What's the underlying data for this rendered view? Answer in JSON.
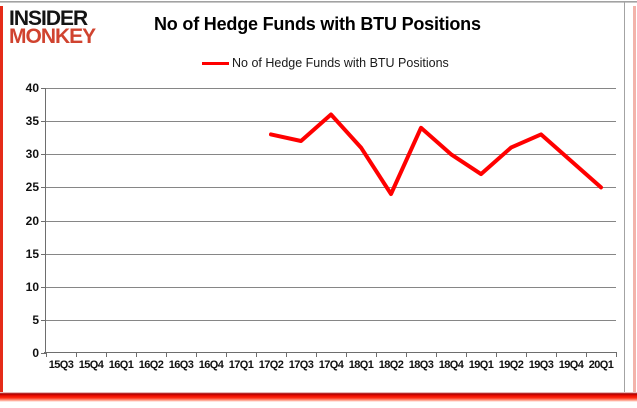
{
  "logo": {
    "line1": "INSIDER",
    "line2": "MONKEY"
  },
  "title": "No of Hedge Funds with BTU Positions",
  "legend": {
    "label": "No of Hedge Funds with BTU Positions"
  },
  "colors": {
    "line": "#ff0000",
    "grid": "#868686",
    "axis": "#6e6e6e",
    "logo_black": "#141414",
    "logo_red": "#d0432f",
    "border_red": "#e52b18",
    "border_pink": "#f3b3ab",
    "frame_gray": "#9e9e9e"
  },
  "chart_data": {
    "type": "line",
    "title": "No of Hedge Funds with BTU Positions",
    "categories": [
      "15Q3",
      "15Q4",
      "16Q1",
      "16Q2",
      "16Q3",
      "16Q4",
      "17Q1",
      "17Q2",
      "17Q3",
      "17Q4",
      "18Q1",
      "18Q2",
      "18Q3",
      "18Q4",
      "19Q1",
      "19Q2",
      "19Q3",
      "19Q4",
      "20Q1"
    ],
    "series": [
      {
        "name": "No of Hedge Funds with BTU Positions",
        "color": "#ff0000",
        "values": [
          null,
          null,
          null,
          null,
          null,
          null,
          null,
          33,
          32,
          36,
          31,
          24,
          34,
          30,
          27,
          31,
          33,
          29,
          25
        ]
      }
    ],
    "xlabel": "",
    "ylabel": "",
    "ylim": [
      0,
      40
    ],
    "yticks": [
      0,
      5,
      10,
      15,
      20,
      25,
      30,
      35,
      40
    ],
    "grid": true,
    "legend_position": "top-center"
  }
}
